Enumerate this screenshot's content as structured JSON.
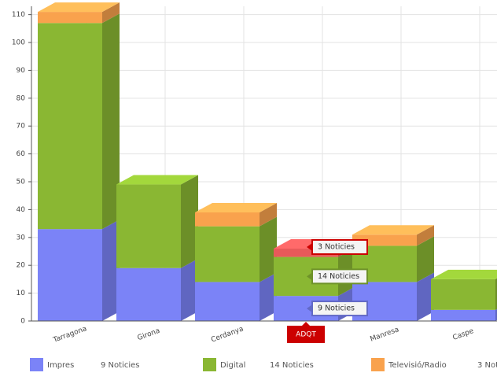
{
  "chart_data": {
    "type": "bar3d_stacked",
    "categories": [
      "Tarragona",
      "Girona",
      "Cerdanya",
      "ADQT",
      "Manresa",
      "Caspe"
    ],
    "series": [
      {
        "name": "Impres",
        "color": "#7b83f7",
        "values": [
          33,
          19,
          14,
          9,
          14,
          4
        ],
        "value_labels": [
          null,
          null,
          null,
          "9 Noticies",
          null,
          null
        ]
      },
      {
        "name": "Digital",
        "color": "#8ab733",
        "values": [
          74,
          30,
          20,
          14,
          13,
          11
        ],
        "value_labels": [
          null,
          null,
          null,
          "14 Noticies",
          null,
          null
        ]
      },
      {
        "name": "Televisió/Radio",
        "color": "#f9a24d",
        "values": [
          4,
          0,
          5,
          3,
          4,
          0
        ],
        "value_labels": [
          null,
          null,
          null,
          "3 Noticies",
          null,
          null
        ]
      }
    ],
    "ylim": [
      0,
      113
    ],
    "yticks": [
      0,
      10,
      20,
      30,
      40,
      50,
      60,
      70,
      80,
      90,
      100,
      110
    ],
    "grid": true,
    "hover_color": "#e85a5a",
    "hover_label_color": "#cc0000"
  }
}
